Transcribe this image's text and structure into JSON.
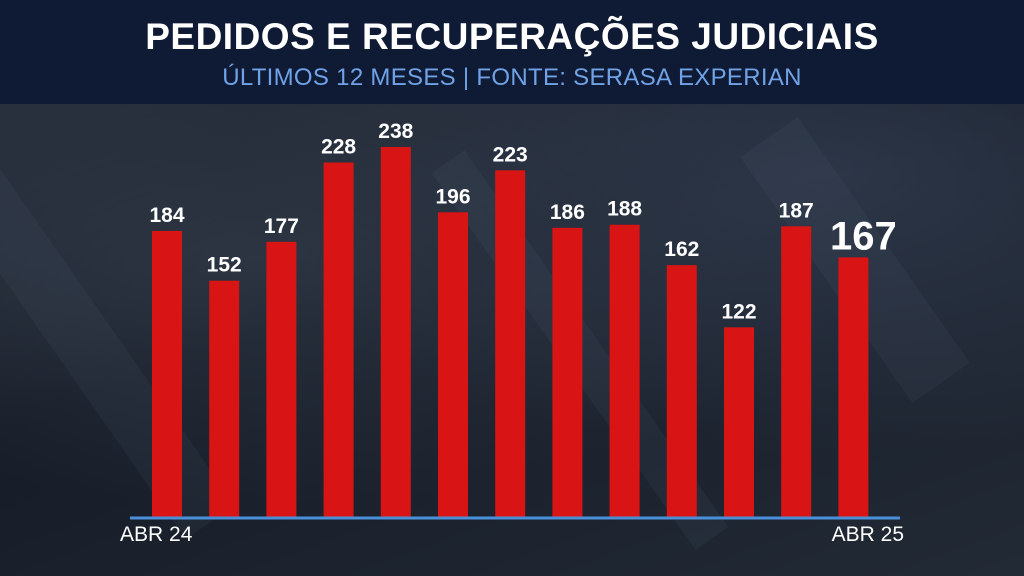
{
  "header": {
    "title": "PEDIDOS E RECUPERAÇÕES JUDICIAIS",
    "subtitle": "ÚLTIMOS 12 MESES | FONTE: SERASA EXPERIAN"
  },
  "colors": {
    "bar": "#d81414",
    "axis": "#4a90d9",
    "header_bg": "#0f1a35",
    "subtitle": "#6fa3e6"
  },
  "chart_data": {
    "type": "bar",
    "categories": [
      "ABR 24",
      "",
      "",
      "",
      "",
      "",
      "",
      "",
      "",
      "",
      "",
      "",
      "ABR 25"
    ],
    "values": [
      184,
      152,
      177,
      228,
      238,
      196,
      223,
      186,
      188,
      162,
      122,
      187,
      167
    ],
    "x_tick_labels": [
      "ABR 24",
      "ABR 25"
    ],
    "ylim": [
      0,
      238
    ],
    "highlight_last": true,
    "grid": false,
    "legend": "none"
  }
}
